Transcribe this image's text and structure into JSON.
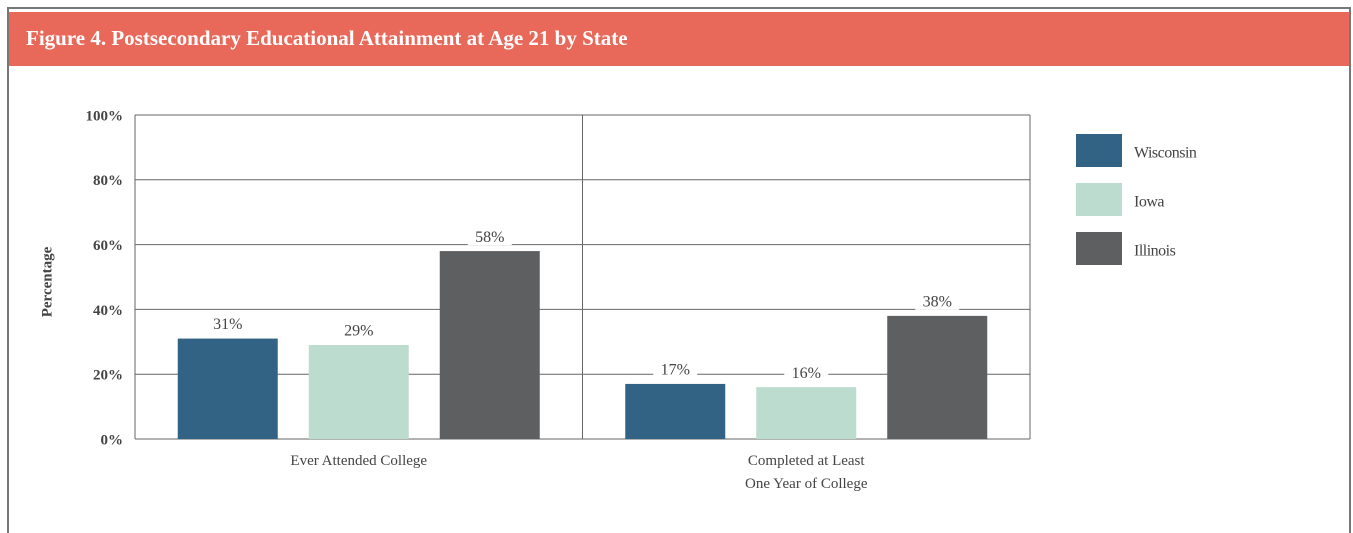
{
  "chart_data": {
    "type": "bar",
    "title": "Figure 4.  Postsecondary Educational Attainment at Age 21 by State",
    "y_label": "Percentage",
    "categories": [
      "Ever Attended College",
      "Completed at Least\nOne Year of College"
    ],
    "series": [
      {
        "name": "Wisconsin",
        "color": "#336384",
        "values": [
          31,
          17
        ],
        "value_labels": [
          "31%",
          "17%"
        ]
      },
      {
        "name": "Iowa",
        "color": "#bbdccf",
        "values": [
          29,
          16
        ],
        "value_labels": [
          "29%",
          "16%"
        ]
      },
      {
        "name": "Illinois",
        "color": "#5e5f61",
        "values": [
          58,
          38
        ],
        "value_labels": [
          "58%",
          "38%"
        ]
      }
    ],
    "ylim": [
      0,
      100
    ],
    "yticks": [
      {
        "value": 0,
        "label": "0%"
      },
      {
        "value": 20,
        "label": "20%"
      },
      {
        "value": 40,
        "label": "40%"
      },
      {
        "value": 60,
        "label": "60%"
      },
      {
        "value": 80,
        "label": "80%"
      },
      {
        "value": 100,
        "label": "100%"
      }
    ],
    "grid": true,
    "legend": "right"
  }
}
